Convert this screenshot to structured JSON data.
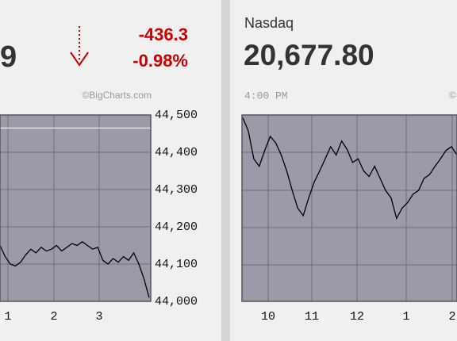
{
  "widgets": [
    {
      "value_fragment": "9",
      "change": "-436.3",
      "change_percent": "-0.98%",
      "credit": "©BigCharts.com"
    },
    {
      "name": "Nasdaq",
      "value": "20,677.80",
      "time": "4:00 PM",
      "credit": "©"
    }
  ],
  "chart_data": [
    {
      "type": "line",
      "color": "#000000",
      "background": "#9a9aa8",
      "values": [
        44150,
        44120,
        44100,
        44095,
        44105,
        44125,
        44140,
        44130,
        44145,
        44135,
        44140,
        44150,
        44135,
        44145,
        44155,
        44150,
        44160,
        44150,
        44140,
        44145,
        44110,
        44100,
        44115,
        44105,
        44120,
        44110,
        44130,
        44100,
        44060,
        44010
      ],
      "previous_close": 44465,
      "ylim": [
        44000,
        44500
      ],
      "yticks": [
        {
          "value": 44500,
          "label": "44,500"
        },
        {
          "value": 44400,
          "label": "44,400"
        },
        {
          "value": 44300,
          "label": "44,300"
        },
        {
          "value": 44200,
          "label": "44,200"
        },
        {
          "value": 44100,
          "label": "44,100"
        },
        {
          "value": 44000,
          "label": "44,000"
        }
      ],
      "xtick_labels": [
        "1",
        "2",
        "3"
      ],
      "grid": true
    },
    {
      "type": "line",
      "color": "#000000",
      "background": "#9a9aa8",
      "values": [
        20757,
        20743,
        20713,
        20705,
        20722,
        20737,
        20730,
        20717,
        20700,
        20679,
        20660,
        20652,
        20671,
        20688,
        20700,
        20713,
        20726,
        20717,
        20732,
        20723,
        20709,
        20713,
        20700,
        20694,
        20705,
        20692,
        20679,
        20671,
        20649,
        20660,
        20666,
        20675,
        20679,
        20692,
        20696,
        20705,
        20713,
        20722,
        20726,
        20717
      ],
      "ylim": [
        20560,
        20760
      ],
      "xtick_labels": [
        "10",
        "11",
        "12",
        "1",
        "2"
      ],
      "grid": true
    }
  ]
}
